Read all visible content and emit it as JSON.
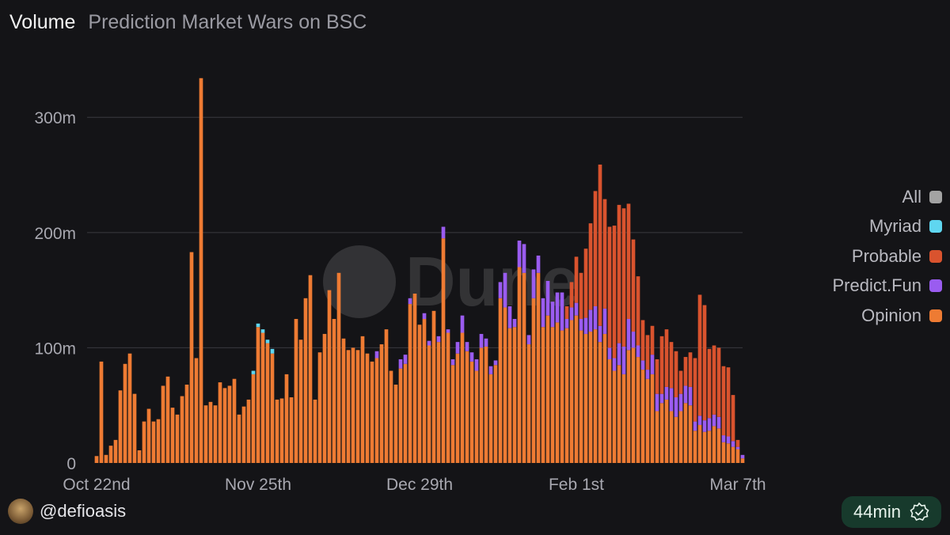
{
  "header": {
    "title": "Volume",
    "subtitle": "Prediction Market Wars on BSC"
  },
  "watermark": {
    "text": "Dune"
  },
  "footer": {
    "username": "@defioasis",
    "badge_text": "44min"
  },
  "chart_data": {
    "type": "bar",
    "stacked": true,
    "title": "Volume",
    "subtitle": "Prediction Market Wars on BSC",
    "xlabel": "",
    "ylabel": "",
    "ylim": [
      0,
      340
    ],
    "y_unit": "m",
    "yticks": [
      0,
      100,
      200,
      300
    ],
    "ytick_labels": [
      "0",
      "100m",
      "200m",
      "300m"
    ],
    "xtick_labels": [
      "Oct 22nd",
      "Nov 25th",
      "Dec 29th",
      "Feb 1st",
      "Mar 7th"
    ],
    "xtick_index": [
      0,
      34,
      68,
      101,
      135
    ],
    "legend": [
      "All",
      "Myriad",
      "Probable",
      "Predict.Fun",
      "Opinion"
    ],
    "legend_position": "right",
    "colors": {
      "All": "#a3a3a3",
      "Myriad": "#5fd6f0",
      "Probable": "#d9532e",
      "Predict.Fun": "#9a5cf0",
      "Opinion": "#ee7b33"
    },
    "series": [
      {
        "name": "Opinion",
        "values": [
          6,
          88,
          7,
          15,
          20,
          63,
          86,
          95,
          60,
          11,
          36,
          47,
          36,
          38,
          67,
          75,
          48,
          42,
          58,
          68,
          183,
          91,
          334,
          50,
          53,
          50,
          70,
          65,
          67,
          73,
          42,
          49,
          55,
          77,
          118,
          113,
          104,
          95,
          55,
          56,
          77,
          57,
          125,
          107,
          143,
          163,
          55,
          96,
          112,
          150,
          125,
          165,
          108,
          98,
          100,
          98,
          110,
          95,
          88,
          91,
          103,
          116,
          80,
          68,
          82,
          86,
          138,
          147,
          120,
          125,
          102,
          132,
          105,
          195,
          113,
          85,
          95,
          113,
          97,
          88,
          80,
          100,
          101,
          77,
          85,
          143,
          135,
          117,
          118,
          170,
          165,
          103,
          143,
          165,
          118,
          128,
          118,
          122,
          115,
          117,
          124,
          128,
          115,
          112,
          114,
          116,
          105,
          112,
          90,
          80,
          85,
          77,
          98,
          100,
          92,
          81,
          73,
          77,
          45,
          52,
          55,
          45,
          40,
          45,
          52,
          50,
          28,
          33,
          27,
          28,
          32,
          30,
          18,
          17,
          14,
          12,
          4
        ],
        "labels": []
      },
      {
        "name": "Predict.Fun",
        "values": [
          0,
          0,
          0,
          0,
          0,
          0,
          0,
          0,
          0,
          0,
          0,
          0,
          0,
          0,
          0,
          0,
          0,
          0,
          0,
          0,
          0,
          0,
          0,
          0,
          0,
          0,
          0,
          0,
          0,
          0,
          0,
          0,
          0,
          0,
          0,
          0,
          0,
          0,
          0,
          0,
          0,
          0,
          0,
          0,
          0,
          0,
          0,
          0,
          0,
          0,
          0,
          0,
          0,
          0,
          0,
          0,
          0,
          0,
          0,
          6,
          0,
          0,
          0,
          0,
          8,
          8,
          5,
          0,
          0,
          5,
          4,
          0,
          5,
          10,
          3,
          5,
          10,
          15,
          8,
          8,
          10,
          12,
          7,
          7,
          4,
          14,
          30,
          19,
          7,
          23,
          25,
          8,
          25,
          15,
          25,
          30,
          22,
          26,
          33,
          8,
          11,
          11,
          10,
          14,
          19,
          20,
          14,
          22,
          10,
          11,
          19,
          24,
          27,
          14,
          10,
          8,
          8,
          17,
          15,
          8,
          11,
          20,
          17,
          15,
          15,
          16,
          8,
          8,
          10,
          11,
          10,
          10,
          6,
          6,
          5,
          2,
          3
        ]
      },
      {
        "name": "Probable",
        "values": [
          0,
          0,
          0,
          0,
          0,
          0,
          0,
          0,
          0,
          0,
          0,
          0,
          0,
          0,
          0,
          0,
          0,
          0,
          0,
          0,
          0,
          0,
          0,
          0,
          0,
          0,
          0,
          0,
          0,
          0,
          0,
          0,
          0,
          0,
          0,
          0,
          0,
          0,
          0,
          0,
          0,
          0,
          0,
          0,
          0,
          0,
          0,
          0,
          0,
          0,
          0,
          0,
          0,
          0,
          0,
          0,
          0,
          0,
          0,
          0,
          0,
          0,
          0,
          0,
          0,
          0,
          0,
          0,
          0,
          0,
          0,
          0,
          0,
          0,
          0,
          0,
          0,
          0,
          0,
          0,
          0,
          0,
          0,
          0,
          0,
          0,
          0,
          0,
          0,
          0,
          0,
          0,
          0,
          0,
          0,
          0,
          0,
          0,
          0,
          11,
          22,
          40,
          40,
          60,
          75,
          100,
          140,
          95,
          105,
          115,
          120,
          120,
          100,
          80,
          60,
          35,
          30,
          25,
          30,
          50,
          50,
          40,
          40,
          20,
          25,
          30,
          55,
          105,
          100,
          60,
          60,
          60,
          60,
          60,
          40,
          6,
          0
        ]
      },
      {
        "name": "Myriad",
        "values": [
          0,
          0,
          0,
          0,
          0,
          0,
          0,
          0,
          0,
          0,
          0,
          0,
          0,
          0,
          0,
          0,
          0,
          0,
          0,
          0,
          0,
          0,
          0,
          0,
          0,
          0,
          0,
          0,
          0,
          0,
          0,
          0,
          0,
          3,
          3,
          3,
          3,
          4,
          0,
          0,
          0,
          0,
          0,
          0,
          0,
          0,
          0,
          0,
          0,
          0,
          0,
          0,
          0,
          0,
          0,
          0,
          0,
          0,
          0,
          0,
          0,
          0,
          0,
          0,
          0,
          0,
          0,
          0,
          0,
          0,
          0,
          0,
          0,
          0,
          0,
          0,
          0,
          0,
          0,
          0,
          0,
          0,
          0,
          0,
          0,
          0,
          0,
          0,
          0,
          0,
          0,
          0,
          0,
          0,
          0,
          0,
          0,
          0,
          0,
          0,
          0,
          0,
          0,
          0,
          0,
          0,
          0,
          0,
          0,
          0,
          0,
          0,
          0,
          0,
          0,
          0,
          0,
          0,
          0,
          0,
          0,
          0,
          0,
          0,
          0,
          0,
          0,
          0,
          0,
          0,
          0,
          0,
          0,
          0,
          0,
          0
        ]
      }
    ]
  }
}
